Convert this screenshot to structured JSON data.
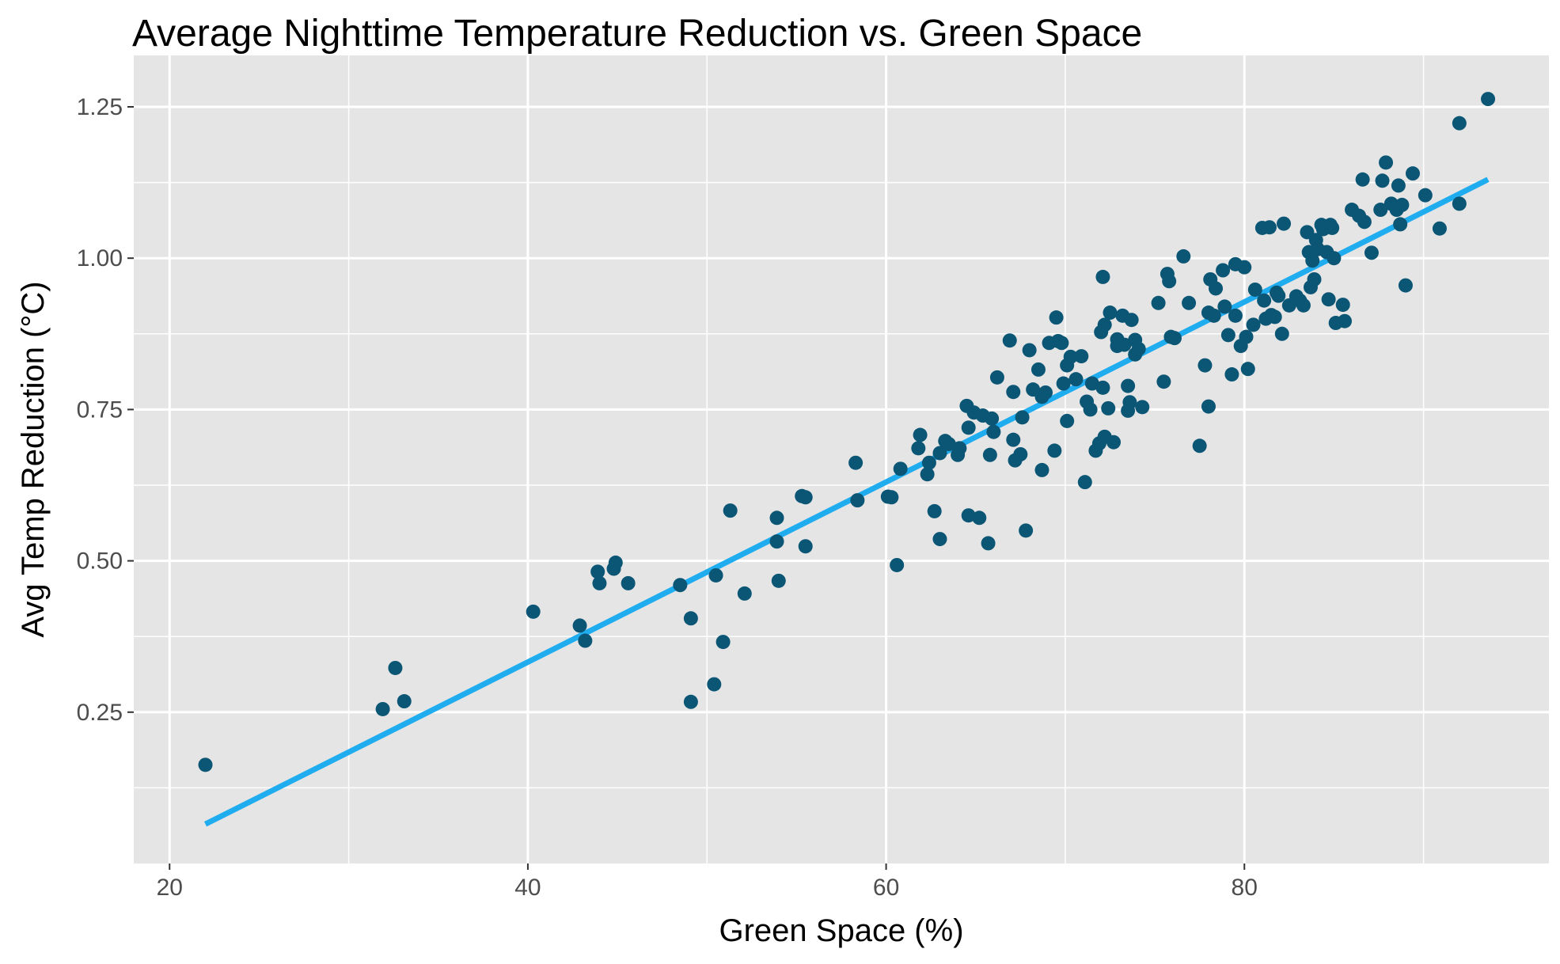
{
  "chart_data": {
    "type": "scatter",
    "title": "Average Nighttime Temperature Reduction vs. Green Space",
    "xlabel": "Green Space (%)",
    "ylabel": "Avg Temp Reduction (°C)",
    "xlim": [
      18,
      97
    ],
    "ylim": [
      0.0,
      1.335
    ],
    "x_ticks": [
      20,
      40,
      60,
      80
    ],
    "x_tick_labels": [
      "20",
      "40",
      "60",
      "80"
    ],
    "y_ticks": [
      0.25,
      0.5,
      0.75,
      1.0,
      1.25
    ],
    "y_tick_labels": [
      "0.25",
      "0.50",
      "0.75",
      "1.00",
      "1.25"
    ],
    "grid": true,
    "colors": {
      "panel": "#e5e5e5",
      "points": "#0b5575",
      "fit_line": "#1fadf0"
    },
    "fit_line": {
      "x": [
        22.0,
        93.6
      ],
      "y": [
        0.065,
        1.13
      ]
    },
    "points": [
      [
        22.0,
        0.163
      ],
      [
        31.9,
        0.255
      ],
      [
        32.6,
        0.323
      ],
      [
        33.1,
        0.268
      ],
      [
        40.3,
        0.416
      ],
      [
        42.9,
        0.393
      ],
      [
        43.2,
        0.368
      ],
      [
        43.9,
        0.482
      ],
      [
        44.0,
        0.463
      ],
      [
        44.8,
        0.487
      ],
      [
        44.9,
        0.497
      ],
      [
        45.6,
        0.463
      ],
      [
        48.5,
        0.46
      ],
      [
        49.1,
        0.405
      ],
      [
        49.1,
        0.267
      ],
      [
        50.4,
        0.296
      ],
      [
        50.5,
        0.476
      ],
      [
        50.9,
        0.366
      ],
      [
        51.3,
        0.583
      ],
      [
        52.1,
        0.446
      ],
      [
        53.9,
        0.571
      ],
      [
        53.9,
        0.532
      ],
      [
        54.0,
        0.467
      ],
      [
        55.3,
        0.607
      ],
      [
        55.5,
        0.605
      ],
      [
        55.5,
        0.524
      ],
      [
        58.3,
        0.662
      ],
      [
        58.4,
        0.6
      ],
      [
        60.1,
        0.606
      ],
      [
        60.3,
        0.605
      ],
      [
        60.6,
        0.493
      ],
      [
        60.8,
        0.652
      ],
      [
        61.8,
        0.686
      ],
      [
        61.9,
        0.708
      ],
      [
        62.3,
        0.643
      ],
      [
        62.4,
        0.662
      ],
      [
        62.7,
        0.582
      ],
      [
        63.0,
        0.536
      ],
      [
        63.0,
        0.678
      ],
      [
        63.3,
        0.698
      ],
      [
        63.5,
        0.693
      ],
      [
        64.0,
        0.675
      ],
      [
        64.1,
        0.686
      ],
      [
        64.5,
        0.756
      ],
      [
        64.6,
        0.72
      ],
      [
        64.6,
        0.575
      ],
      [
        64.9,
        0.745
      ],
      [
        65.2,
        0.571
      ],
      [
        65.4,
        0.74
      ],
      [
        65.7,
        0.529
      ],
      [
        65.8,
        0.675
      ],
      [
        65.9,
        0.735
      ],
      [
        66.0,
        0.713
      ],
      [
        66.2,
        0.803
      ],
      [
        66.9,
        0.864
      ],
      [
        67.1,
        0.779
      ],
      [
        67.1,
        0.7
      ],
      [
        67.2,
        0.666
      ],
      [
        67.5,
        0.676
      ],
      [
        67.6,
        0.737
      ],
      [
        67.8,
        0.55
      ],
      [
        68.0,
        0.848
      ],
      [
        68.2,
        0.783
      ],
      [
        68.5,
        0.816
      ],
      [
        68.7,
        0.65
      ],
      [
        68.7,
        0.771
      ],
      [
        68.9,
        0.778
      ],
      [
        69.1,
        0.86
      ],
      [
        69.4,
        0.682
      ],
      [
        69.5,
        0.902
      ],
      [
        69.6,
        0.863
      ],
      [
        69.8,
        0.86
      ],
      [
        69.9,
        0.793
      ],
      [
        70.1,
        0.731
      ],
      [
        70.1,
        0.823
      ],
      [
        70.3,
        0.837
      ],
      [
        70.6,
        0.8
      ],
      [
        70.9,
        0.838
      ],
      [
        71.1,
        0.63
      ],
      [
        71.2,
        0.763
      ],
      [
        71.4,
        0.75
      ],
      [
        71.5,
        0.793
      ],
      [
        71.7,
        0.682
      ],
      [
        71.9,
        0.694
      ],
      [
        72.0,
        0.878
      ],
      [
        72.1,
        0.969
      ],
      [
        72.1,
        0.786
      ],
      [
        72.2,
        0.89
      ],
      [
        72.2,
        0.705
      ],
      [
        72.4,
        0.752
      ],
      [
        72.5,
        0.91
      ],
      [
        72.7,
        0.696
      ],
      [
        72.9,
        0.855
      ],
      [
        72.9,
        0.866
      ],
      [
        73.2,
        0.905
      ],
      [
        73.3,
        0.857
      ],
      [
        73.5,
        0.748
      ],
      [
        73.5,
        0.789
      ],
      [
        73.6,
        0.762
      ],
      [
        73.7,
        0.898
      ],
      [
        73.9,
        0.865
      ],
      [
        73.9,
        0.841
      ],
      [
        74.1,
        0.85
      ],
      [
        74.3,
        0.754
      ],
      [
        75.2,
        0.926
      ],
      [
        75.5,
        0.796
      ],
      [
        75.7,
        0.974
      ],
      [
        75.8,
        0.962
      ],
      [
        75.9,
        0.87
      ],
      [
        76.1,
        0.868
      ],
      [
        76.6,
        1.003
      ],
      [
        76.9,
        0.926
      ],
      [
        77.5,
        0.69
      ],
      [
        77.8,
        0.823
      ],
      [
        78.0,
        0.91
      ],
      [
        78.0,
        0.755
      ],
      [
        78.1,
        0.965
      ],
      [
        78.3,
        0.905
      ],
      [
        78.4,
        0.95
      ],
      [
        78.8,
        0.98
      ],
      [
        78.9,
        0.92
      ],
      [
        79.1,
        0.873
      ],
      [
        79.3,
        0.808
      ],
      [
        79.5,
        0.905
      ],
      [
        79.5,
        0.99
      ],
      [
        79.8,
        0.855
      ],
      [
        80.0,
        0.985
      ],
      [
        80.1,
        0.87
      ],
      [
        80.2,
        0.817
      ],
      [
        80.5,
        0.89
      ],
      [
        80.6,
        0.948
      ],
      [
        81.0,
        1.05
      ],
      [
        81.1,
        0.93
      ],
      [
        81.2,
        0.9
      ],
      [
        81.4,
        1.051
      ],
      [
        81.5,
        0.906
      ],
      [
        81.7,
        0.903
      ],
      [
        81.8,
        0.943
      ],
      [
        81.9,
        0.938
      ],
      [
        82.1,
        0.875
      ],
      [
        82.2,
        1.057
      ],
      [
        82.5,
        0.922
      ],
      [
        82.9,
        0.937
      ],
      [
        83.1,
        0.93
      ],
      [
        83.3,
        0.922
      ],
      [
        83.5,
        1.043
      ],
      [
        83.6,
        1.01
      ],
      [
        83.7,
        0.952
      ],
      [
        83.8,
        0.996
      ],
      [
        83.9,
        0.965
      ],
      [
        84.0,
        1.03
      ],
      [
        84.1,
        1.015
      ],
      [
        84.3,
        1.055
      ],
      [
        84.4,
        1.048
      ],
      [
        84.6,
        1.01
      ],
      [
        84.7,
        0.932
      ],
      [
        84.8,
        1.055
      ],
      [
        84.9,
        1.05
      ],
      [
        85.0,
        1.0
      ],
      [
        85.1,
        0.893
      ],
      [
        85.5,
        0.923
      ],
      [
        85.6,
        0.896
      ],
      [
        86.0,
        1.08
      ],
      [
        86.4,
        1.07
      ],
      [
        86.6,
        1.13
      ],
      [
        86.7,
        1.06
      ],
      [
        87.1,
        1.009
      ],
      [
        87.6,
        1.08
      ],
      [
        87.7,
        1.128
      ],
      [
        87.9,
        1.158
      ],
      [
        88.2,
        1.09
      ],
      [
        88.5,
        1.08
      ],
      [
        88.6,
        1.12
      ],
      [
        88.7,
        1.056
      ],
      [
        88.8,
        1.088
      ],
      [
        89.0,
        0.955
      ],
      [
        89.4,
        1.14
      ],
      [
        90.1,
        1.104
      ],
      [
        90.9,
        1.049
      ],
      [
        92.0,
        1.09
      ],
      [
        92.0,
        1.223
      ],
      [
        93.6,
        1.263
      ]
    ]
  }
}
